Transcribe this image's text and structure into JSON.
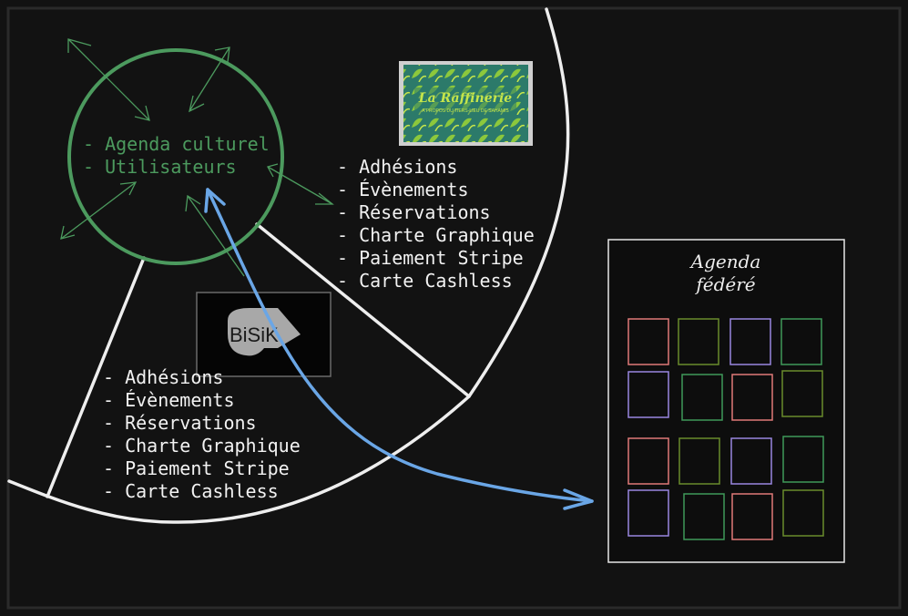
{
  "hub": {
    "items": [
      "- Agenda culturel",
      "- Utilisateurs"
    ]
  },
  "raffinerie": {
    "logo_title": "La Raffinerie",
    "logo_tagline": "A PROPOS DU TIERS-LIEU DE SAHAMIS",
    "items": [
      "- Adhésions",
      "- Évènements",
      "- Réservations",
      "- Charte Graphique",
      "- Paiement Stripe",
      "- Carte Cashless"
    ]
  },
  "bisik": {
    "logo_text": "BiSiK",
    "items": [
      "- Adhésions",
      "- Évènements",
      "- Réservations",
      "- Charte Graphique",
      "- Paiement Stripe",
      "- Carte Cashless"
    ]
  },
  "agenda": {
    "title_line1": "Agenda",
    "title_line2": "fédéré"
  },
  "colors": {
    "background": "#121212",
    "frame": "#2a2a2a",
    "hub_green": "#4c9a5e",
    "line_white": "#eeeeee",
    "link_blue": "#6aa6e6",
    "tile_red": "#e07a78",
    "tile_olive": "#6a8c2c",
    "tile_purple": "#9a86e0",
    "tile_green": "#3f9a5a"
  }
}
